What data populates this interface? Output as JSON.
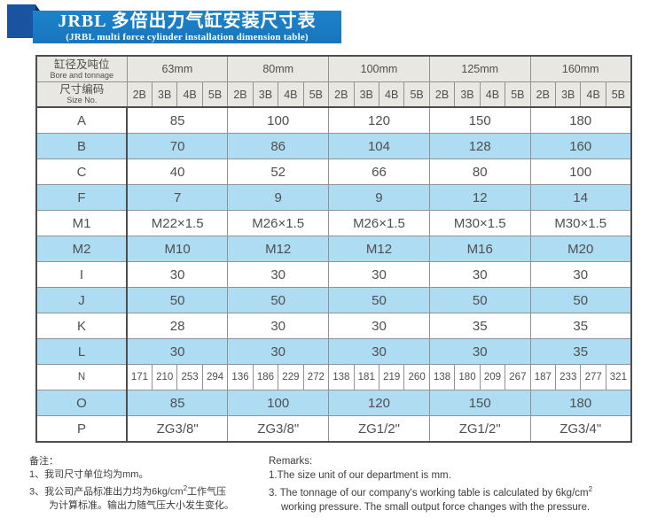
{
  "banner": {
    "title_zh": "JRBL 多倍出力气缸安装尺寸表",
    "title_en": "(JRBL multi force cylinder installation dimension table)"
  },
  "table": {
    "corner": {
      "bore_zh": "缸径及吨位",
      "bore_en": "Bore and tonnage",
      "size_zh": "尺寸编码",
      "size_en": "Size No."
    },
    "bore_groups": [
      "63mm",
      "80mm",
      "100mm",
      "125mm",
      "160mm"
    ],
    "size_codes": [
      "2B",
      "3B",
      "4B",
      "5B"
    ],
    "rows": [
      {
        "label": "A",
        "type": "merged",
        "shaded": false,
        "values": [
          "85",
          "100",
          "120",
          "150",
          "180"
        ]
      },
      {
        "label": "B",
        "type": "merged",
        "shaded": true,
        "values": [
          "70",
          "86",
          "104",
          "128",
          "160"
        ]
      },
      {
        "label": "C",
        "type": "merged",
        "shaded": false,
        "values": [
          "40",
          "52",
          "66",
          "80",
          "100"
        ]
      },
      {
        "label": "F",
        "type": "merged",
        "shaded": true,
        "values": [
          "7",
          "9",
          "9",
          "12",
          "14"
        ]
      },
      {
        "label": "M1",
        "type": "merged",
        "shaded": false,
        "values": [
          "M22×1.5",
          "M26×1.5",
          "M26×1.5",
          "M30×1.5",
          "M30×1.5"
        ]
      },
      {
        "label": "M2",
        "type": "merged",
        "shaded": true,
        "values": [
          "M10",
          "M12",
          "M12",
          "M16",
          "M20"
        ]
      },
      {
        "label": "I",
        "type": "merged",
        "shaded": false,
        "values": [
          "30",
          "30",
          "30",
          "30",
          "30"
        ]
      },
      {
        "label": "J",
        "type": "merged",
        "shaded": true,
        "values": [
          "50",
          "50",
          "50",
          "50",
          "50"
        ]
      },
      {
        "label": "K",
        "type": "merged",
        "shaded": false,
        "values": [
          "28",
          "30",
          "30",
          "35",
          "35"
        ]
      },
      {
        "label": "L",
        "type": "merged",
        "shaded": true,
        "values": [
          "30",
          "30",
          "30",
          "30",
          "35"
        ]
      },
      {
        "label": "N",
        "type": "percode",
        "shaded": false,
        "values": [
          [
            "171",
            "210",
            "253",
            "294"
          ],
          [
            "136",
            "186",
            "229",
            "272"
          ],
          [
            "138",
            "181",
            "219",
            "260"
          ],
          [
            "138",
            "180",
            "209",
            "267"
          ],
          [
            "187",
            "233",
            "277",
            "321"
          ]
        ]
      },
      {
        "label": "O",
        "type": "merged",
        "shaded": true,
        "values": [
          "85",
          "100",
          "120",
          "150",
          "180"
        ]
      },
      {
        "label": "P",
        "type": "merged",
        "shaded": false,
        "values": [
          "ZG3/8\"",
          "ZG3/8\"",
          "ZG1/2\"",
          "ZG1/2\"",
          "ZG3/4\""
        ]
      }
    ]
  },
  "notes_zh": {
    "heading": "备注：",
    "line1": "1、我司尺寸单位均为mm。",
    "line2_pre": "3、我公司产品标准出力均为6kg/cm",
    "line2_sup": "2",
    "line2_post": "工作气压",
    "line3": "为计算标准。输出力随气压大小发生变化。"
  },
  "notes_en": {
    "heading": "Remarks:",
    "line1": "1.The size unit of our department is mm.",
    "line2_pre": "3. The tonnage of our company's working table is calculated by 6kg/cm",
    "line2_sup": "2",
    "line3": "working pressure. The small output force changes with the pressure."
  },
  "colors": {
    "banner_blue": "#1776bd",
    "ribbon_blue": "#1a53a0",
    "fold_navy": "#0e2e63",
    "header_gray": "#e8e7e2",
    "row_blue": "#aedcf2",
    "border_dark": "#4d4d4d",
    "border_light": "#929292"
  }
}
